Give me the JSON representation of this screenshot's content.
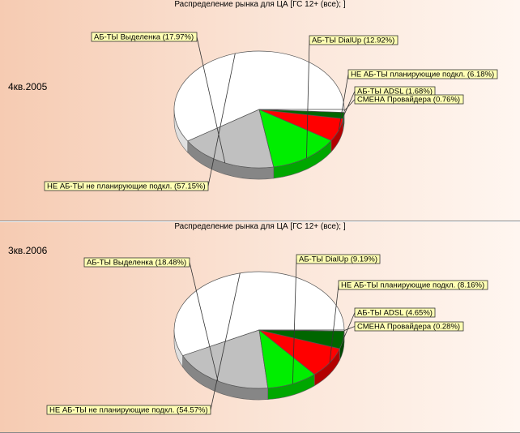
{
  "chart_data": [
    {
      "type": "pie",
      "title": "Распределение рынка для ЦА [ГС 12+ (все); ]",
      "period": "4кв.2005",
      "slices": [
        {
          "label": "НЕ АБ-ТЫ не планирующие подкл. (57.15%)",
          "value": 57.15,
          "color": "#ffffff"
        },
        {
          "label": "АБ-ТЫ Выделенка (17.97%)",
          "value": 17.97,
          "color": "#c0c0c0"
        },
        {
          "label": "АБ-ТЫ DialUp (12.92%)",
          "value": 12.92,
          "color": "#00ee00"
        },
        {
          "label": "НЕ АБ-ТЫ планирующие подкл. (6.18%)",
          "value": 6.18,
          "color": "#ff0000"
        },
        {
          "label": "АБ-ТЫ ADSL (1.68%)",
          "value": 1.68,
          "color": "#006600"
        },
        {
          "label": "СМЕНА Провайдера (0.76%)",
          "value": 0.76,
          "color": "#ffffff"
        }
      ]
    },
    {
      "type": "pie",
      "title": "Распределение рынка для ЦА [ГС 12+ (все); ]",
      "period": "3кв.2006",
      "slices": [
        {
          "label": "НЕ АБ-ТЫ не планирующие подкл. (54.57%)",
          "value": 54.57,
          "color": "#ffffff"
        },
        {
          "label": "АБ-ТЫ Выделенка (18.48%)",
          "value": 18.48,
          "color": "#c0c0c0"
        },
        {
          "label": "АБ-ТЫ DialUp (9.19%)",
          "value": 9.19,
          "color": "#00ee00"
        },
        {
          "label": "НЕ АБ-ТЫ планирующие подкл. (8.16%)",
          "value": 8.16,
          "color": "#ff0000"
        },
        {
          "label": "АБ-ТЫ ADSL (4.65%)",
          "value": 4.65,
          "color": "#006600"
        },
        {
          "label": "СМЕНА Провайдера (0.28%)",
          "value": 0.28,
          "color": "#ffffff"
        }
      ]
    }
  ]
}
